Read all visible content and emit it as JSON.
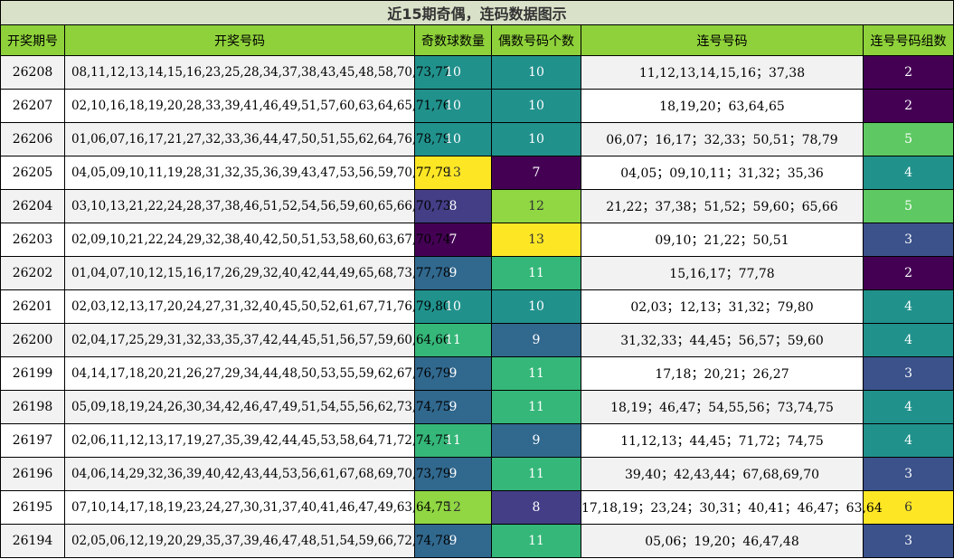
{
  "title": "近15期奇偶，连码数据图示",
  "headers": {
    "period": "开奖期号",
    "numbers": "开奖号码",
    "odd": "奇数球数量",
    "even": "偶数号码个数",
    "consec": "连号号码",
    "groups": "连号号码组数"
  },
  "palette": {
    "2": "#440154",
    "3": "#3b528b",
    "4": "#21918c",
    "5": "#5ec962",
    "6": "#fde725",
    "7": "#440154",
    "8": "#433e85",
    "9": "#31688e",
    "10": "#21918c",
    "11": "#35b779",
    "12": "#90d743",
    "13": "#fde725"
  },
  "dark_text_values": [
    6,
    12,
    13
  ],
  "rows": [
    {
      "period": "26208",
      "numbers": "08,11,12,13,14,15,16,23,25,28,34,37,38,43,45,48,58,70,73,77",
      "odd": 10,
      "even": 10,
      "consec": "11,12,13,14,15,16；37,38",
      "groups": 2
    },
    {
      "period": "26207",
      "numbers": "02,10,16,18,19,20,28,33,39,41,46,49,51,57,60,63,64,65,71,76",
      "odd": 10,
      "even": 10,
      "consec": "18,19,20；63,64,65",
      "groups": 2
    },
    {
      "period": "26206",
      "numbers": "01,06,07,16,17,21,27,32,33,36,44,47,50,51,55,62,64,76,78,79",
      "odd": 10,
      "even": 10,
      "consec": "06,07；16,17；32,33；50,51；78,79",
      "groups": 5
    },
    {
      "period": "26205",
      "numbers": "04,05,09,10,11,19,28,31,32,35,36,39,43,47,53,56,59,70,77,79",
      "odd": 13,
      "even": 7,
      "consec": "04,05；09,10,11；31,32；35,36",
      "groups": 4
    },
    {
      "period": "26204",
      "numbers": "03,10,13,21,22,24,28,37,38,46,51,52,54,56,59,60,65,66,70,73",
      "odd": 8,
      "even": 12,
      "consec": "21,22；37,38；51,52；59,60；65,66",
      "groups": 5
    },
    {
      "period": "26203",
      "numbers": "02,09,10,21,22,24,29,32,38,40,42,50,51,53,58,60,63,67,70,74",
      "odd": 7,
      "even": 13,
      "consec": "09,10；21,22；50,51",
      "groups": 3
    },
    {
      "period": "26202",
      "numbers": "01,04,07,10,12,15,16,17,26,29,32,40,42,44,49,65,68,73,77,78",
      "odd": 9,
      "even": 11,
      "consec": "15,16,17；77,78",
      "groups": 2
    },
    {
      "period": "26201",
      "numbers": "02,03,12,13,17,20,24,27,31,32,40,45,50,52,61,67,71,76,79,80",
      "odd": 10,
      "even": 10,
      "consec": "02,03；12,13；31,32；79,80",
      "groups": 4
    },
    {
      "period": "26200",
      "numbers": "02,04,17,25,29,31,32,33,35,37,42,44,45,51,56,57,59,60,64,66",
      "odd": 11,
      "even": 9,
      "consec": "31,32,33；44,45；56,57；59,60",
      "groups": 4
    },
    {
      "period": "26199",
      "numbers": "04,14,17,18,20,21,26,27,29,34,44,48,50,53,55,59,62,67,76,79",
      "odd": 9,
      "even": 11,
      "consec": "17,18；20,21；26,27",
      "groups": 3
    },
    {
      "period": "26198",
      "numbers": "05,09,18,19,24,26,30,34,42,46,47,49,51,54,55,56,62,73,74,75",
      "odd": 9,
      "even": 11,
      "consec": "18,19；46,47；54,55,56；73,74,75",
      "groups": 4
    },
    {
      "period": "26197",
      "numbers": "02,06,11,12,13,17,19,27,35,39,42,44,45,53,58,64,71,72,74,75",
      "odd": 11,
      "even": 9,
      "consec": "11,12,13；44,45；71,72；74,75",
      "groups": 4
    },
    {
      "period": "26196",
      "numbers": "04,06,14,29,32,36,39,40,42,43,44,53,56,61,67,68,69,70,73,79",
      "odd": 9,
      "even": 11,
      "consec": "39,40；42,43,44；67,68,69,70",
      "groups": 3
    },
    {
      "period": "26195",
      "numbers": "07,10,14,17,18,19,23,24,27,30,31,37,40,41,46,47,49,63,64,75",
      "odd": 12,
      "even": 8,
      "consec": "17,18,19；23,24；30,31；40,41；46,47；63,64",
      "groups": 6
    },
    {
      "period": "26194",
      "numbers": "02,05,06,12,19,20,29,35,37,39,46,47,48,51,54,59,66,72,74,78",
      "odd": 9,
      "even": 11,
      "consec": "05,06；19,20；46,47,48",
      "groups": 3
    }
  ]
}
